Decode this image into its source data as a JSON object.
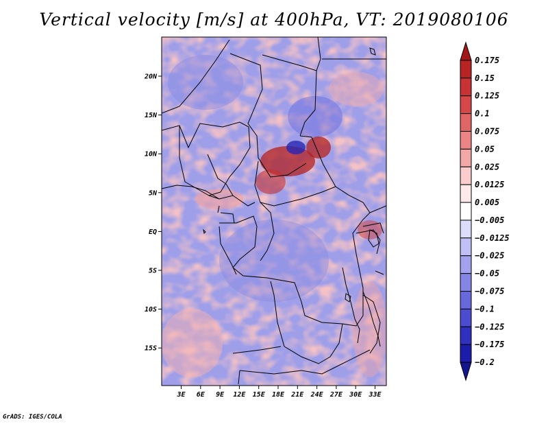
{
  "title": "Vertical velocity [m/s] at 400hPa, VT: 2019080106",
  "credit": "GrADS: IGES/COLA",
  "map": {
    "lon_ticks": [
      "3E",
      "6E",
      "9E",
      "12E",
      "15E",
      "18E",
      "21E",
      "24E",
      "27E",
      "30E",
      "33E"
    ],
    "lat_ticks": [
      "20N",
      "15N",
      "10N",
      "5N",
      "EQ",
      "5S",
      "10S",
      "15S"
    ]
  },
  "colorbar": {
    "labels": [
      "0.175",
      "0.15",
      "0.125",
      "0.1",
      "0.075",
      "0.05",
      "0.025",
      "0.0125",
      "0.005",
      "−0.005",
      "−0.0125",
      "−0.025",
      "−0.05",
      "−0.075",
      "−0.1",
      "−0.125",
      "−0.175",
      "−0.2"
    ],
    "colors": [
      "#a31717",
      "#b82323",
      "#c93232",
      "#d64848",
      "#e06565",
      "#eb8585",
      "#f3a8a8",
      "#f9cdcd",
      "#fde9e9",
      "#ffffff",
      "#dcdcfb",
      "#c0c0f6",
      "#a2a2ee",
      "#8585e6",
      "#6868dd",
      "#4c4cd0",
      "#3030bf",
      "#1c1caa",
      "#14148c"
    ]
  }
}
